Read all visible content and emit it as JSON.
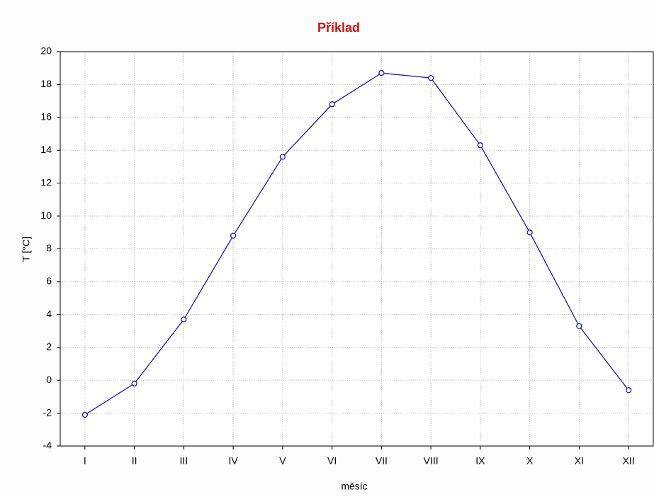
{
  "chart_data": {
    "type": "line",
    "title": "Příklad",
    "xlabel": "měsíc",
    "ylabel": "T [°C]",
    "categories": [
      "I",
      "II",
      "III",
      "IV",
      "V",
      "VI",
      "VII",
      "VIII",
      "IX",
      "X",
      "XI",
      "XII"
    ],
    "values": [
      -2.1,
      -0.2,
      3.7,
      8.8,
      13.6,
      16.8,
      18.7,
      18.4,
      14.3,
      9.0,
      3.3,
      -0.6
    ],
    "color": "#1a1aa6",
    "ylim": [
      -4,
      20
    ],
    "yticks": [
      -4,
      -2,
      0,
      2,
      4,
      6,
      8,
      10,
      12,
      14,
      16,
      18,
      20
    ],
    "grid": true
  }
}
